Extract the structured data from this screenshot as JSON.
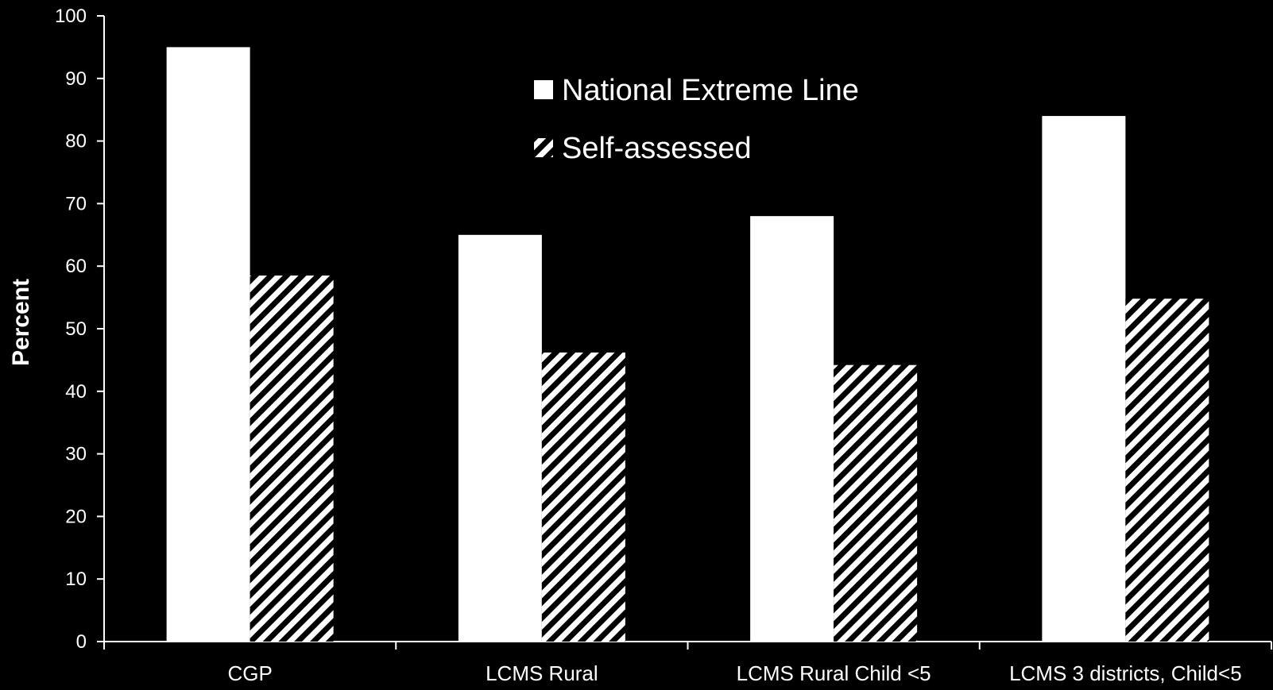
{
  "chart_data": {
    "type": "bar",
    "title": "",
    "xlabel": "",
    "ylabel": "Percent",
    "ylim": [
      0,
      100
    ],
    "yticks": [
      0,
      10,
      20,
      30,
      40,
      50,
      60,
      70,
      80,
      90,
      100
    ],
    "categories": [
      "CGP",
      "LCMS Rural",
      "LCMS Rural Child <5",
      "LCMS 3 districts, Child<5"
    ],
    "series": [
      {
        "name": "National Extreme Line",
        "values": [
          95,
          65,
          68,
          84
        ],
        "fill": "solid",
        "color": "#ffffff"
      },
      {
        "name": "Self-assessed",
        "values": [
          58.5,
          46.2,
          44.2,
          54.8
        ],
        "fill": "hatched",
        "color": "#ffffff"
      }
    ],
    "grid": false,
    "legend_position": "top-center",
    "colors": {
      "background": "#000000",
      "foreground": "#ffffff"
    }
  }
}
